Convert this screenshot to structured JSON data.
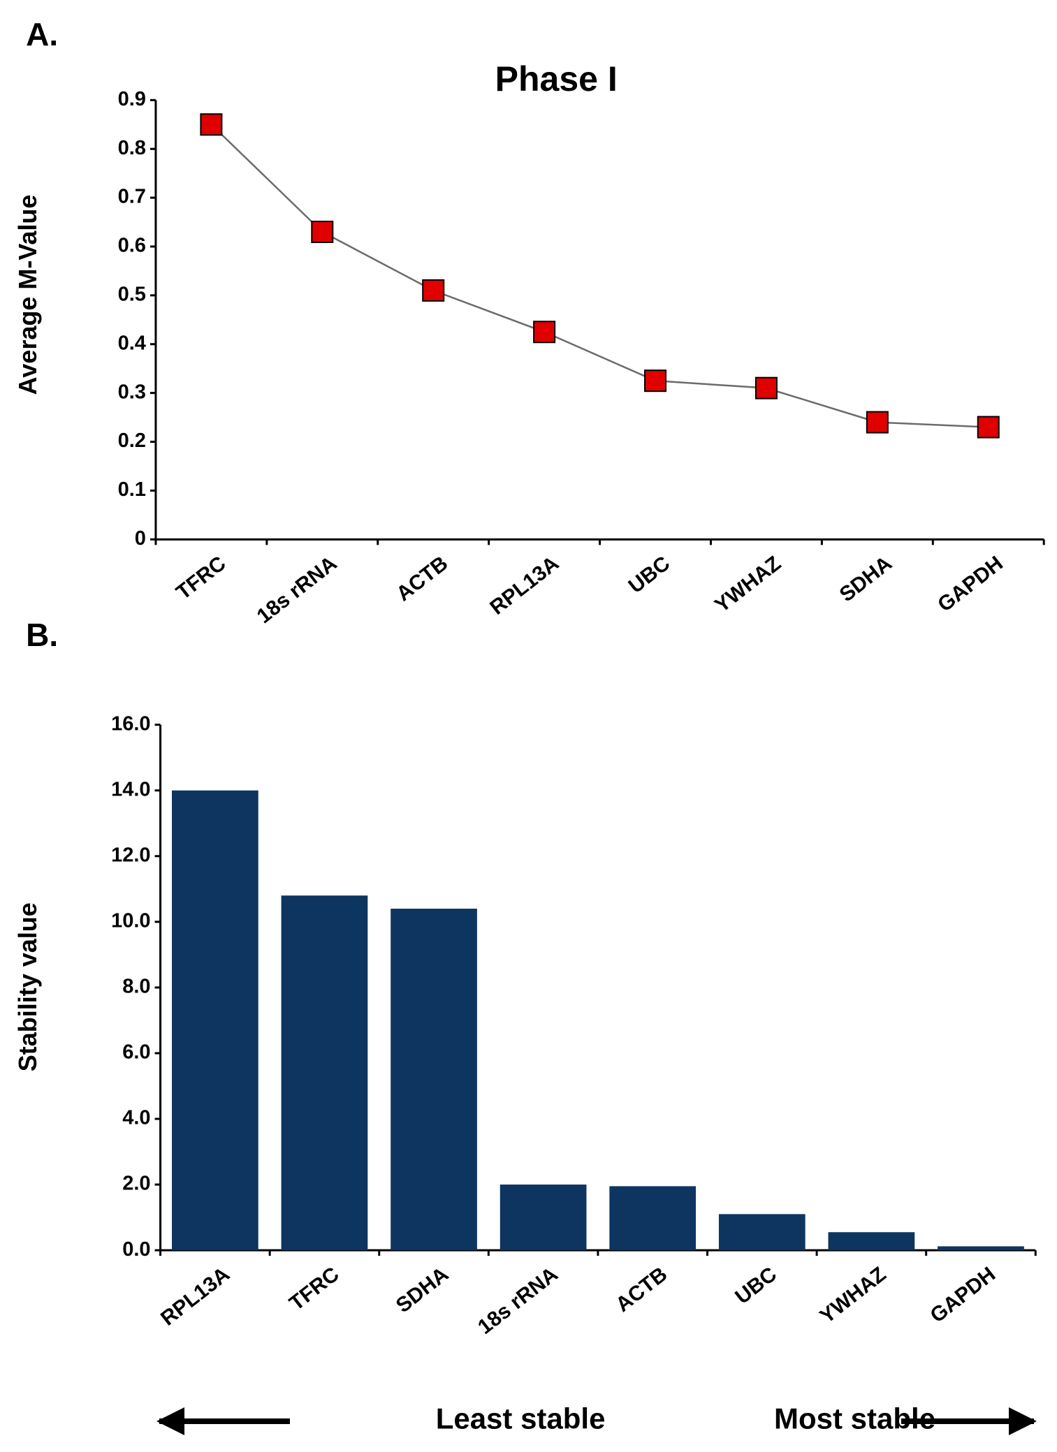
{
  "chart_data": [
    {
      "type": "line",
      "panel_label": "A.",
      "title": "Phase I",
      "y_label": "Average M-Value",
      "categories": [
        "TFRC",
        "18s rRNA",
        "ACTB",
        "RPL13A",
        "UBC",
        "YWHAZ",
        "SDHA",
        "GAPDH"
      ],
      "values": [
        0.85,
        0.63,
        0.51,
        0.425,
        0.325,
        0.31,
        0.24,
        0.23
      ],
      "color": "#e00000",
      "line_color": "#6b6b6b",
      "ylim": [
        0,
        0.9
      ],
      "yticks": [
        0,
        0.1,
        0.2,
        0.3,
        0.4,
        0.5,
        0.6,
        0.7,
        0.8,
        0.9
      ],
      "grid": false
    },
    {
      "type": "bar",
      "panel_label": "B.",
      "y_label": "Stability value",
      "categories": [
        "RPL13A",
        "TFRC",
        "SDHA",
        "18s rRNA",
        "ACTB",
        "UBC",
        "YWHAZ",
        "GAPDH"
      ],
      "values": [
        14.0,
        10.8,
        10.4,
        2.0,
        1.95,
        1.1,
        0.55,
        0.12
      ],
      "color": "#0d3560",
      "ylim": [
        0,
        16
      ],
      "yticks": [
        {
          "value": 0,
          "label": "0.0"
        },
        {
          "value": 2,
          "label": "2.0"
        },
        {
          "value": 4,
          "label": "4.0"
        },
        {
          "value": 6,
          "label": "6.0"
        },
        {
          "value": 8,
          "label": "8.0"
        },
        {
          "value": 10,
          "label": "10.0"
        },
        {
          "value": 12,
          "label": "12.0"
        },
        {
          "value": 14,
          "label": "14.0"
        },
        {
          "value": 16,
          "label": "16.0"
        }
      ],
      "grid": false,
      "annotations": [
        "Least stable",
        "Most stable"
      ]
    }
  ]
}
